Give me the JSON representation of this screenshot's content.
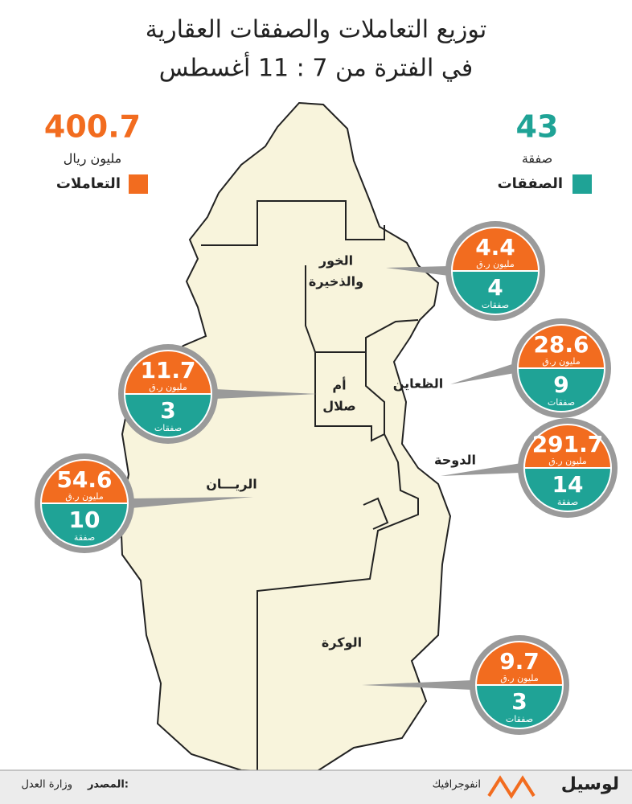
{
  "title": {
    "line1": "توزيع التعاملات والصفقات العقارية",
    "line2": "في الفترة من 7 : 11 أغسطس"
  },
  "totals": {
    "transactions": {
      "value": 400.7,
      "unit": "مليون ريال",
      "label": "التعاملات"
    },
    "deals": {
      "value": 43,
      "unit": "صفقة",
      "label": "الصفقات"
    }
  },
  "regions": [
    {
      "name": [
        "الخور",
        "والذخيرة"
      ],
      "value": 4.4,
      "value_unit": "مليون ر.ق",
      "deals": 4,
      "deals_unit": "صفقات"
    },
    {
      "name": [
        "الظعاين"
      ],
      "value": 28.6,
      "value_unit": "مليون ر.ق",
      "deals": 9,
      "deals_unit": "صفقات"
    },
    {
      "name": [
        "الدوحة"
      ],
      "value": 291.7,
      "value_unit": "مليون ر.ق",
      "deals": 14,
      "deals_unit": "صفقة"
    },
    {
      "name": [
        "أم",
        "صلال"
      ],
      "value": 11.7,
      "value_unit": "مليون ر.ق",
      "deals": 3,
      "deals_unit": "صفقات"
    },
    {
      "name": [
        "الريـــان"
      ],
      "value": 54.6,
      "value_unit": "مليون ر.ق",
      "deals": 10,
      "deals_unit": "صفقة"
    },
    {
      "name": [
        "الوكرة"
      ],
      "value": 9.7,
      "value_unit": "مليون ر.ق",
      "deals": 3,
      "deals_unit": "صفقات"
    }
  ],
  "footer": {
    "source_label": "المصدر:",
    "source": "وزارة العدل",
    "tag": "انفوجرافيك",
    "brand": "لوسيل"
  }
}
